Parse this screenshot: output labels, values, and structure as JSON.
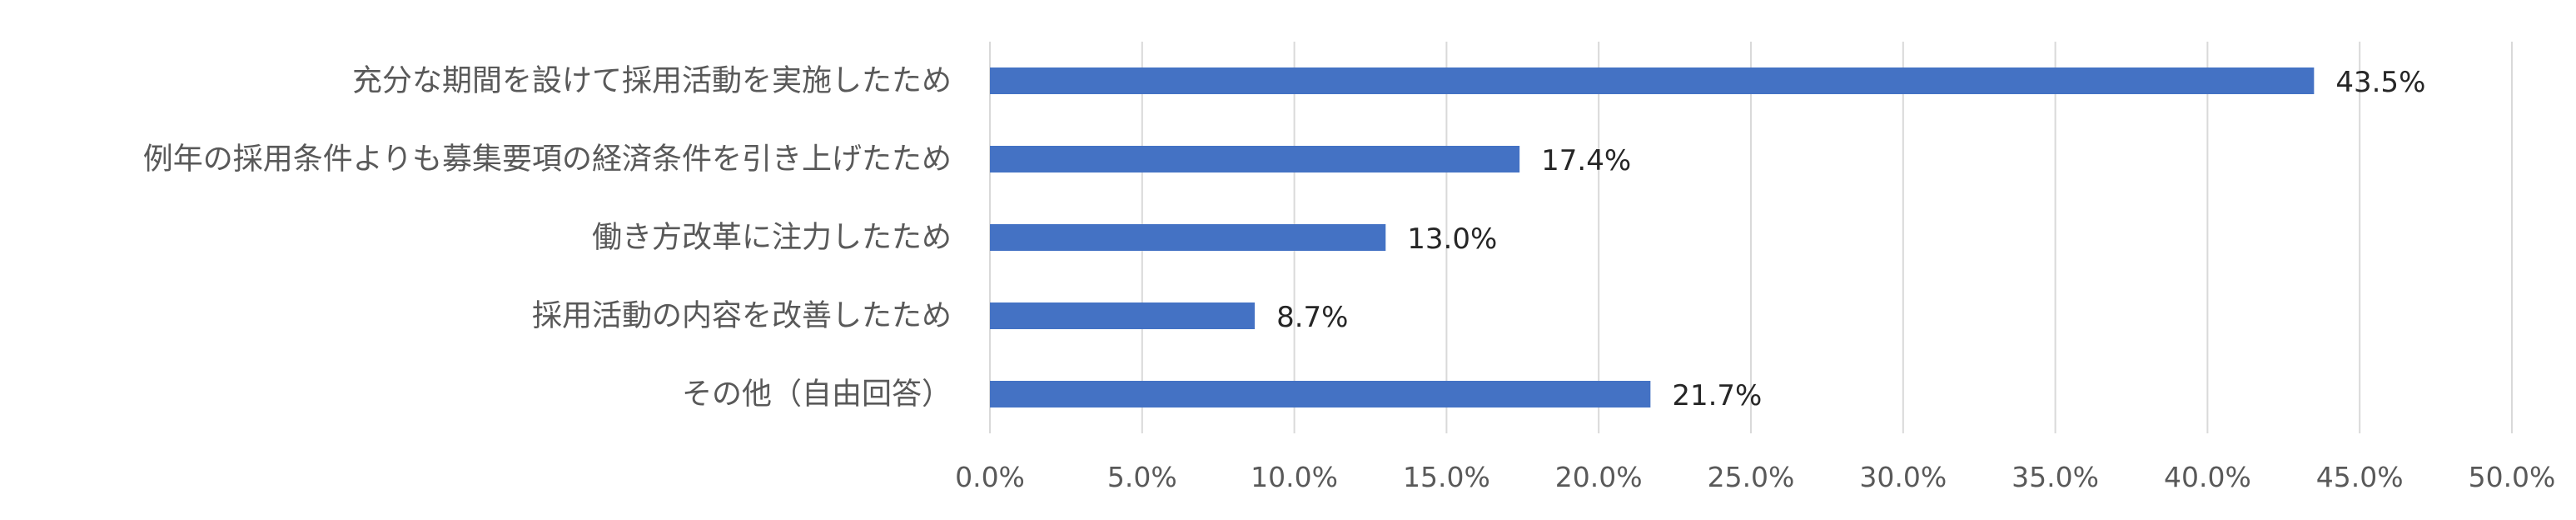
{
  "chart_data": {
    "type": "bar",
    "orientation": "horizontal",
    "categories": [
      "充分な期間を設けて採用活動を実施したため",
      "例年の採用条件よりも募集要項の経済条件を引き上げたため",
      "働き方改革に注力したため",
      "採用活動の内容を改善したため",
      "その他（自由回答）"
    ],
    "values": [
      43.5,
      17.4,
      13.0,
      8.7,
      21.7
    ],
    "value_labels": [
      "43.5%",
      "17.4%",
      "13.0%",
      "8.7%",
      "21.7%"
    ],
    "xlim": [
      0,
      50
    ],
    "xticks": [
      0,
      5,
      10,
      15,
      20,
      25,
      30,
      35,
      40,
      45,
      50
    ],
    "xtick_labels": [
      "0.0%",
      "5.0%",
      "10.0%",
      "15.0%",
      "20.0%",
      "25.0%",
      "30.0%",
      "35.0%",
      "40.0%",
      "45.0%",
      "50.0%"
    ],
    "grid": "vertical",
    "legend": "none",
    "bar_color": "#4472C4",
    "grid_color": "#D9D9D9"
  }
}
